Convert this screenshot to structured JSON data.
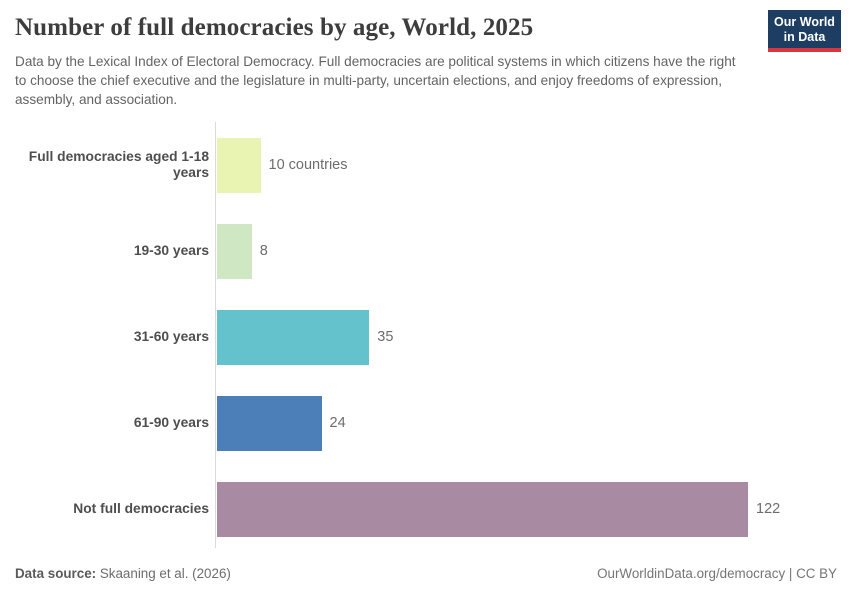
{
  "header": {
    "title": "Number of full democracies by age, World, 2025",
    "subtitle": "Data by the Lexical Index of Electoral Democracy. Full democracies are political systems in which citizens have the right to choose the chief executive and the legislature in multi-party, uncertain elections, and enjoy freedoms of expression, assembly, and association.",
    "logo": {
      "line1": "Our World",
      "line2": "in Data",
      "bg_color": "#1d3d63",
      "accent_color": "#d7383f"
    }
  },
  "chart_data": {
    "type": "bar",
    "orientation": "horizontal",
    "title": "Number of full democracies by age, World, 2025",
    "categories": [
      "Full democracies aged 1-18 years",
      "19-30 years",
      "31-60 years",
      "61-90 years",
      "Not full democracies"
    ],
    "values": [
      10,
      8,
      35,
      24,
      122
    ],
    "value_labels": [
      "10 countries",
      "8",
      "35",
      "24",
      "122"
    ],
    "bar_colors": [
      "#e9f3b2",
      "#cfe7c2",
      "#64c2cd",
      "#4c7eb8",
      "#a88ba2"
    ],
    "unit": "countries",
    "xlim": [
      0,
      122
    ],
    "grid": false,
    "legend": "none",
    "axis_color": "#dadada"
  },
  "footer": {
    "source_label": "Data source:",
    "source_value": " Skaaning et al. (2026)",
    "credit": "OurWorldinData.org/democracy | CC BY"
  }
}
